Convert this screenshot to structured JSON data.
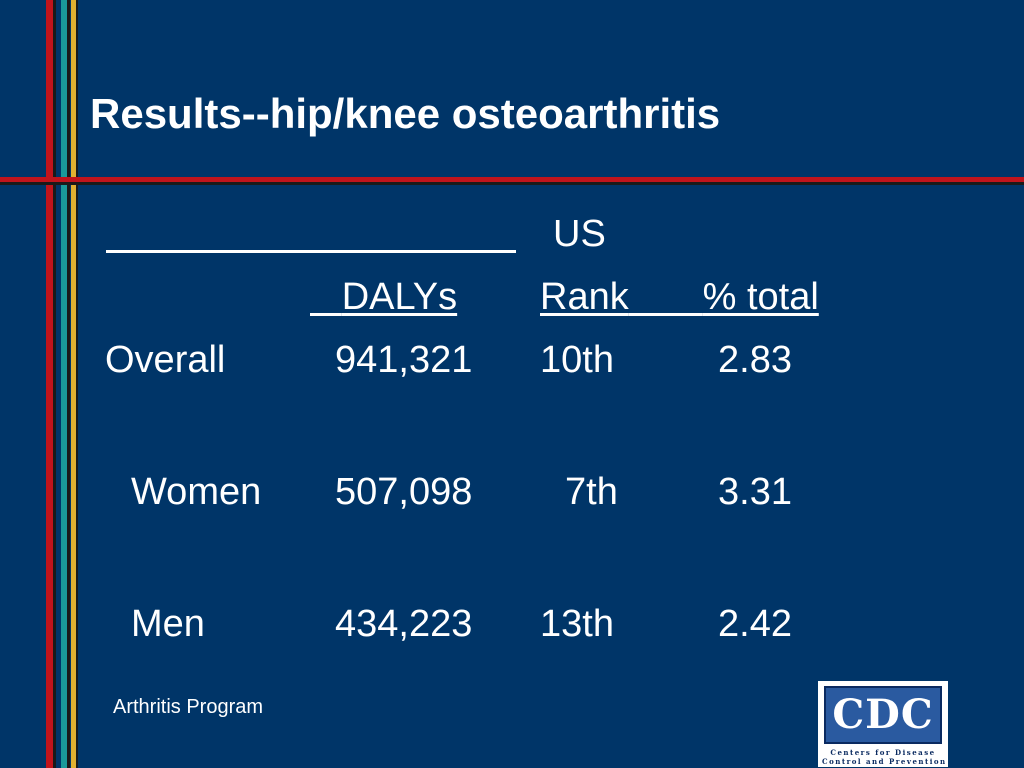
{
  "title": "Results--hip/knee osteoarthritis",
  "table": {
    "group_header": "US",
    "columns": {
      "dalys": "DALYs",
      "rank": "Rank",
      "pct_total": "% total"
    },
    "rows": [
      {
        "label": "Overall",
        "dalys": "941,321",
        "rank": "10th",
        "pct_total": "2.83"
      },
      {
        "label": "Women",
        "dalys": "507,098",
        "rank": "7th",
        "pct_total": "3.31"
      },
      {
        "label": "Men",
        "dalys": "434,223",
        "rank": "13th",
        "pct_total": "2.42"
      }
    ]
  },
  "footer": "Arthritis Program",
  "logo": {
    "mark": "CDC",
    "line1": "Centers for Disease",
    "line2": "Control and Prevention"
  },
  "colors": {
    "background": "#003568",
    "stripe_red": "#c0141c",
    "stripe_teal": "#1a9a9a",
    "stripe_gold": "#e0b030"
  }
}
